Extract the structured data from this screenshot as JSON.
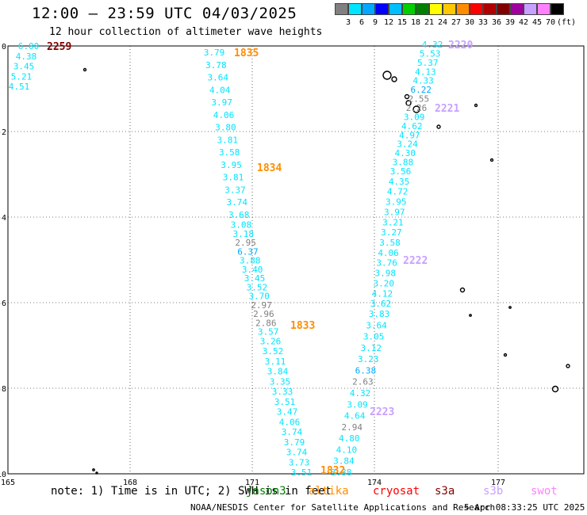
{
  "title": "12:00 – 23:59 UTC 04/03/2025",
  "subtitle": "12 hour collection of altimeter wave heights",
  "legend": {
    "unit": "(ft)",
    "colors": [
      "#808080",
      "#00e5ff",
      "#00a8ff",
      "#0000ff",
      "#00bfff",
      "#00d000",
      "#008000",
      "#ffff00",
      "#ffc800",
      "#ff8c00",
      "#ff0000",
      "#b00000",
      "#800000",
      "#a000a0",
      "#c8a0ff",
      "#ff80ff",
      "#000000"
    ],
    "ticks": [
      "3",
      "6",
      "9",
      "12",
      "15",
      "18",
      "21",
      "24",
      "27",
      "30",
      "33",
      "36",
      "39",
      "42",
      "45",
      "70"
    ]
  },
  "axes": {
    "y_labels": [
      "0",
      "-2",
      "-4",
      "-6",
      "-8",
      "-10"
    ],
    "x_labels": [
      "165",
      "168",
      "171",
      "174",
      "177"
    ]
  },
  "tracks": [
    {
      "time": "2259",
      "color": "#800000",
      "values": [
        {
          "v": "6.00",
          "c": "#00e5ff"
        },
        {
          "v": "4.38",
          "c": "#00e5ff"
        },
        {
          "v": "3.45",
          "c": "#00e5ff"
        },
        {
          "v": "5.21",
          "c": "#00e5ff"
        },
        {
          "v": "4.51",
          "c": "#00e5ff"
        }
      ]
    },
    {
      "time": "1835",
      "color": "#ff8c00",
      "values": [
        {
          "v": "3.79",
          "c": "#00e5ff"
        },
        {
          "v": "3.78",
          "c": "#00e5ff"
        },
        {
          "v": "3.64",
          "c": "#00e5ff"
        },
        {
          "v": "4.04",
          "c": "#00e5ff"
        },
        {
          "v": "3.97",
          "c": "#00e5ff"
        },
        {
          "v": "4.06",
          "c": "#00e5ff"
        },
        {
          "v": "3.80",
          "c": "#00e5ff"
        },
        {
          "v": "3.81",
          "c": "#00e5ff"
        },
        {
          "v": "3.58",
          "c": "#00e5ff"
        },
        {
          "v": "3.95",
          "c": "#00e5ff"
        },
        {
          "v": "3.81",
          "c": "#00e5ff"
        },
        {
          "v": "3.37",
          "c": "#00e5ff"
        },
        {
          "v": "3.74",
          "c": "#00e5ff"
        },
        {
          "v": "3.68",
          "c": "#00e5ff"
        },
        {
          "v": "3.08",
          "c": "#00e5ff"
        },
        {
          "v": "3.18",
          "c": "#00e5ff"
        },
        {
          "v": "2.95",
          "c": "#808080"
        },
        {
          "v": "6.37",
          "c": "#00a8ff"
        },
        {
          "v": "3.88",
          "c": "#00e5ff"
        },
        {
          "v": "3.40",
          "c": "#00e5ff"
        },
        {
          "v": "3.45",
          "c": "#00e5ff"
        },
        {
          "v": "3.52",
          "c": "#00e5ff"
        },
        {
          "v": "3.70",
          "c": "#00e5ff"
        },
        {
          "v": "2.97",
          "c": "#808080"
        },
        {
          "v": "2.96",
          "c": "#808080"
        },
        {
          "v": "2.86",
          "c": "#808080"
        },
        {
          "v": "3.57",
          "c": "#00e5ff"
        },
        {
          "v": "3.26",
          "c": "#00e5ff"
        },
        {
          "v": "3.52",
          "c": "#00e5ff"
        },
        {
          "v": "3.11",
          "c": "#00e5ff"
        },
        {
          "v": "3.84",
          "c": "#00e5ff"
        },
        {
          "v": "3.35",
          "c": "#00e5ff"
        },
        {
          "v": "3.33",
          "c": "#00e5ff"
        },
        {
          "v": "3.51",
          "c": "#00e5ff"
        },
        {
          "v": "3.47",
          "c": "#00e5ff"
        },
        {
          "v": "4.06",
          "c": "#00e5ff"
        },
        {
          "v": "3.74",
          "c": "#00e5ff"
        },
        {
          "v": "3.79",
          "c": "#00e5ff"
        },
        {
          "v": "3.74",
          "c": "#00e5ff"
        },
        {
          "v": "3.73",
          "c": "#00e5ff"
        },
        {
          "v": "3.51",
          "c": "#00e5ff"
        }
      ]
    },
    {
      "time": "1834",
      "color": "#ff8c00"
    },
    {
      "time": "1833",
      "color": "#ff8c00"
    },
    {
      "time": "1832",
      "color": "#ff8c00"
    },
    {
      "time": "2220",
      "color": "#c8a0ff",
      "values": [
        {
          "v": "4.32",
          "c": "#00e5ff"
        },
        {
          "v": "5.53",
          "c": "#00e5ff"
        },
        {
          "v": "5.37",
          "c": "#00e5ff"
        },
        {
          "v": "4.13",
          "c": "#00e5ff"
        },
        {
          "v": "4.33",
          "c": "#00e5ff"
        },
        {
          "v": "6.22",
          "c": "#00a8ff"
        },
        {
          "v": "2.55",
          "c": "#808080"
        },
        {
          "v": "2.26",
          "c": "#808080"
        },
        {
          "v": "3.09",
          "c": "#00e5ff"
        },
        {
          "v": "4.62",
          "c": "#00e5ff"
        },
        {
          "v": "4.97",
          "c": "#00e5ff"
        },
        {
          "v": "3.24",
          "c": "#00e5ff"
        },
        {
          "v": "4.30",
          "c": "#00e5ff"
        },
        {
          "v": "3.88",
          "c": "#00e5ff"
        },
        {
          "v": "3.56",
          "c": "#00e5ff"
        },
        {
          "v": "4.35",
          "c": "#00e5ff"
        },
        {
          "v": "4.72",
          "c": "#00e5ff"
        },
        {
          "v": "3.95",
          "c": "#00e5ff"
        },
        {
          "v": "3.97",
          "c": "#00e5ff"
        },
        {
          "v": "3.21",
          "c": "#00e5ff"
        },
        {
          "v": "3.27",
          "c": "#00e5ff"
        },
        {
          "v": "3.58",
          "c": "#00e5ff"
        },
        {
          "v": "4.06",
          "c": "#00e5ff"
        },
        {
          "v": "3.76",
          "c": "#00e5ff"
        },
        {
          "v": "3.98",
          "c": "#00e5ff"
        },
        {
          "v": "3.20",
          "c": "#00e5ff"
        },
        {
          "v": "4.12",
          "c": "#00e5ff"
        },
        {
          "v": "3.62",
          "c": "#00e5ff"
        },
        {
          "v": "3.83",
          "c": "#00e5ff"
        },
        {
          "v": "3.64",
          "c": "#00e5ff"
        },
        {
          "v": "3.05",
          "c": "#00e5ff"
        },
        {
          "v": "3.12",
          "c": "#00e5ff"
        },
        {
          "v": "3.23",
          "c": "#00e5ff"
        },
        {
          "v": "6.38",
          "c": "#00a8ff"
        },
        {
          "v": "2.63",
          "c": "#808080"
        },
        {
          "v": "4.32",
          "c": "#00e5ff"
        },
        {
          "v": "3.09",
          "c": "#00e5ff"
        },
        {
          "v": "4.64",
          "c": "#00e5ff"
        },
        {
          "v": "2.94",
          "c": "#808080"
        },
        {
          "v": "4.80",
          "c": "#00e5ff"
        },
        {
          "v": "4.10",
          "c": "#00e5ff"
        },
        {
          "v": "3.84",
          "c": "#00e5ff"
        },
        {
          "v": "3.88",
          "c": "#00e5ff"
        }
      ]
    },
    {
      "time": "2221",
      "color": "#c8a0ff"
    },
    {
      "time": "2222",
      "color": "#c8a0ff"
    },
    {
      "time": "2223",
      "color": "#c8a0ff"
    }
  ],
  "note": "note: 1) Time is in UTC; 2) SWH is in feet",
  "satellites": [
    {
      "name": "jason3",
      "color": "#008000"
    },
    {
      "name": "altika",
      "color": "#ff8c00"
    },
    {
      "name": "cryosat",
      "color": "#ff0000"
    },
    {
      "name": "s3a",
      "color": "#800000"
    },
    {
      "name": "s3b",
      "color": "#c8a0ff"
    },
    {
      "name": "swot",
      "color": "#ff80ff"
    }
  ],
  "footer": "NOAA/NESDIS Center for Satellite Applications and Research",
  "timestamp": "5 Apr 08:33:25 UTC 2025"
}
